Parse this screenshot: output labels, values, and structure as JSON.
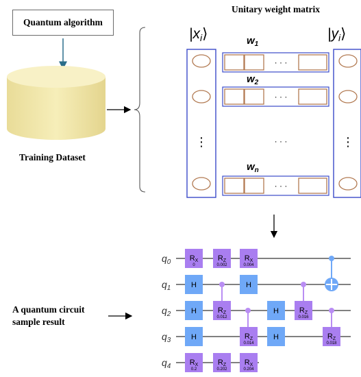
{
  "quantum_algorithm": "Quantum algorithm",
  "training_dataset": "Training Dataset",
  "unitary_title": "Unitary weight matrix",
  "input_state": "|x",
  "input_sub": "i",
  "output_state": "|y",
  "output_sub": "i",
  "bracket_close": "⟩",
  "weights": [
    {
      "base": "w",
      "sub": "1"
    },
    {
      "base": "w",
      "sub": "2"
    },
    {
      "base": "w",
      "sub": "n"
    }
  ],
  "ellipsis_h": "· · ·",
  "ellipsis_v": "⋮",
  "circuit_label_line1": "A quantum circuit",
  "circuit_label_line2": "sample result",
  "qubits": [
    {
      "base": "q",
      "sub": "0"
    },
    {
      "base": "q",
      "sub": "1"
    },
    {
      "base": "q",
      "sub": "2"
    },
    {
      "base": "q",
      "sub": "3"
    },
    {
      "base": "q",
      "sub": "4"
    }
  ],
  "gates": {
    "rx0": {
      "name": "R",
      "sub": "X",
      "param": "0"
    },
    "rz0": {
      "name": "R",
      "sub": "Z",
      "param": "0.002"
    },
    "rx0b": {
      "name": "R",
      "sub": "X",
      "param": "0.004"
    },
    "h1a": {
      "name": "H"
    },
    "h1b": {
      "name": "H"
    },
    "h2a": {
      "name": "H"
    },
    "rz2a": {
      "name": "R",
      "sub": "Z",
      "param": "0.012"
    },
    "h2b": {
      "name": "H"
    },
    "rz2b": {
      "name": "R",
      "sub": "Z",
      "param": "0.016"
    },
    "h3a": {
      "name": "H"
    },
    "rz3a": {
      "name": "R",
      "sub": "Z",
      "param": "0.014"
    },
    "h3b": {
      "name": "H"
    },
    "rz3b": {
      "name": "R",
      "sub": "Z",
      "param": "0.018"
    },
    "rx4a": {
      "name": "R",
      "sub": "X",
      "param": "0.2"
    },
    "rz4": {
      "name": "R",
      "sub": "Z",
      "param": "0.202"
    },
    "rx4b": {
      "name": "R",
      "sub": "X",
      "param": "0.204"
    }
  },
  "colors": {
    "cylinder": "#f1e7a8",
    "arrow_teal": "#2b6e8a",
    "column_border": "#3a49c9",
    "ellipse_stroke": "#b27a52",
    "weight_rect": "#b27a52",
    "h_gate": "#6fa8f7",
    "r_gate": "#a97ef0",
    "control_dot": "#b98df3",
    "cnot": "#6fa8f7"
  }
}
